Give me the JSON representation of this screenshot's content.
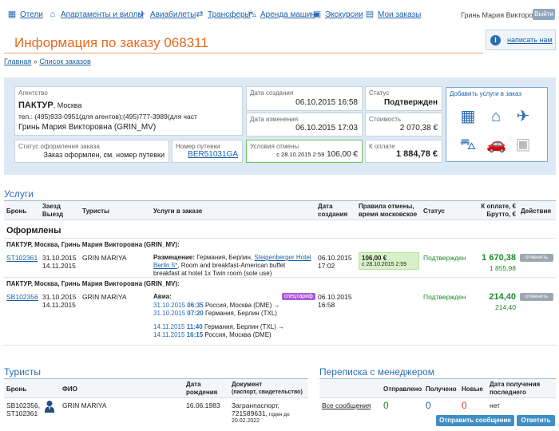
{
  "nav": {
    "items": [
      {
        "label": "Отели",
        "icon": "hotel-icon"
      },
      {
        "label": "Апартаменты и виллы",
        "icon": "villa-icon"
      },
      {
        "label": "Авиабилеты",
        "icon": "plane-icon"
      },
      {
        "label": "Трансферы",
        "icon": "transfer-icon"
      },
      {
        "label": "Аренда машин",
        "icon": "car-icon"
      },
      {
        "label": "Экскурсии",
        "icon": "excursion-icon"
      },
      {
        "label": "Мои заказы",
        "icon": "orders-icon"
      }
    ],
    "user": "Гринь Мария Викторовна",
    "logout": "Выйти"
  },
  "page": {
    "title": "Информация по заказу 068311",
    "write_us": "написать нам",
    "breadcrumb": {
      "home": "Главная",
      "sep": "»",
      "orders": "Список заказов"
    }
  },
  "order": {
    "agency_label": "Агентство",
    "agency_name": "ПАКТУР",
    "agency_city": ", Москва",
    "agency_phone": "тел.: (495)933-0951(для агентов);(495)777-3989(для част",
    "agency_person": "Гринь Мария Викторовна (GRIN_MV)",
    "created_label": "Дата создания",
    "created": "06.10.2015 16:58",
    "changed_label": "Дата изменения",
    "changed": "06.10.2015 17:03",
    "status_label": "Статус",
    "status": "Подтвержден",
    "cost_label": "Стоимость",
    "cost": "2 070,38 €",
    "doc_status_label": "Статус оформления заказа",
    "doc_status": "Заказ оформлен, см. номер путевки",
    "voucher_label": "Номер путевки",
    "voucher": "BER51031GA",
    "cancel_label": "Условия отмены",
    "cancel_date": "с 28.10.2015 2:59",
    "cancel_amount": "106,00 €",
    "pay_label": "К оплате",
    "pay": "1 884,78 €",
    "add_services": "Добавить услуги в заказ"
  },
  "services": {
    "title": "Услуги",
    "headers": {
      "booking": "Бронь",
      "dates1": "Заезд",
      "dates2": "Выезд",
      "tourists": "Туристы",
      "services": "Услуги в заказе",
      "created1": "Дата",
      "created2": "создания",
      "rules1": "Правила отмены,",
      "rules2": "время московское",
      "status": "Статус",
      "pay1": "К оплате, €",
      "pay2": "Брутто, €",
      "actions": "Действия"
    },
    "group": "Оформлены",
    "rows": [
      {
        "group_line": "ПАКТУР, Москва, Гринь Мария Викторовна (GRIN_MV):",
        "booking": "ST102361",
        "date_in": "31.10.2015",
        "date_out": "14.11.2015",
        "tourist": "GRIN MARIYA",
        "service_type": "Размещение:",
        "service_place": " Германия, Берлин, ",
        "hotel": "Steigenberger Hotel Berlin 5*",
        "service_rest": ", Room and breakfast-American buffet breakfast at hotel 1x Twin room (sole use)",
        "created_date": "06.10.2015",
        "created_time": "17:02",
        "cancel_amount": "106,00 €",
        "cancel_date": "с 28.10.2015 2:59",
        "status": "Подтвержден",
        "pay": "1 670,38",
        "gross": "1 855,98",
        "action": "отменить"
      },
      {
        "group_line": "ПАКТУР, Москва, Гринь Мария Викторовна (GRIN_MV):",
        "booking": "SB102356",
        "date_in": "31.10.2015",
        "date_out": "14.11.2015",
        "tourist": "GRIN MARIYA",
        "service_type": "Авиа:",
        "tag": "спецтариф",
        "flights": [
          {
            "date": "31.10.2015",
            "time": "06:35",
            "place": "Россия, Москва (DME) →"
          },
          {
            "date": "31.10.2015",
            "time": "07:20",
            "place": "Германия, Берлин (TXL)"
          },
          {
            "date": "14.11.2015",
            "time": "11:40",
            "place": "Германия, Берлин (TXL) →"
          },
          {
            "date": "14.11.2015",
            "time": "16:15",
            "place": "Россия, Москва (DME)"
          }
        ],
        "created_date": "06.10.2015",
        "created_time": "16:58",
        "status": "Подтвержден",
        "pay": "214,40",
        "gross": "214,40",
        "action": "отменить"
      }
    ]
  },
  "tourists": {
    "title": "Туристы",
    "headers": {
      "booking": "Бронь",
      "name": "ФИО",
      "birth1": "Дата",
      "birth2": "рождения",
      "doc1": "Документ",
      "doc2": "(паспорт, свидетельство)"
    },
    "rows": [
      {
        "booking1": "SB102356,",
        "booking2": "ST102361",
        "name": "GRIN MARIYA",
        "birth": "16.06.1983",
        "doc1": "Загранпаспорт,",
        "doc2": "721589631,",
        "doc2_small": " годен до",
        "doc3": "20.02.2022"
      }
    ]
  },
  "correspondence": {
    "title": "Переписка с менеджером",
    "headers": {
      "sent": "Отправлено",
      "received": "Получено",
      "new": "Новые",
      "last1": "Дата получения",
      "last2": "последнего"
    },
    "row": {
      "link": "Все сообщения",
      "sent": "0",
      "received": "0",
      "new": "0",
      "last": "нет"
    },
    "send_button": "Отправить сообщение",
    "reply_button": "Ответить"
  },
  "colors": {
    "accent": "#e46a1f",
    "link": "#1a5fa8",
    "success": "#1f8a2a",
    "panel": "#ddeaf6"
  }
}
